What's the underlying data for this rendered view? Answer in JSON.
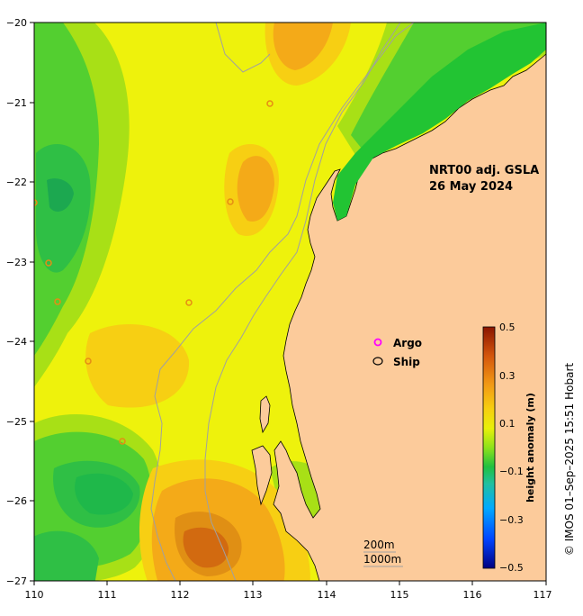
{
  "map": {
    "product_title": "NRT00 adj. GSLA",
    "date": "26 May 2024",
    "credit": "© IMOS 01–Sep–2025 15:51 Hobart",
    "lon_range": [
      110,
      117
    ],
    "lat_range": [
      -27,
      -20
    ],
    "lon_ticks": [
      "110",
      "111",
      "112",
      "113",
      "114",
      "115",
      "116",
      "117"
    ],
    "lat_ticks": [
      "−20",
      "−21",
      "−22",
      "−23",
      "−24",
      "−25",
      "−26",
      "−27"
    ],
    "legend": {
      "argo_label": "Argo",
      "ship_label": "Ship",
      "contour_200": "200m",
      "contour_1000": "1000m"
    },
    "colorbar": {
      "label": "height anomaly (m)",
      "range": [
        -0.5,
        0.5
      ],
      "ticks": [
        "0.5",
        "0.3",
        "0.1",
        "−0.1",
        "−0.3",
        "−0.5"
      ]
    },
    "colors": {
      "land": "#fccb9b",
      "ocean_yellow": "#f2f20a",
      "ocean_orange": "#f5b516",
      "ocean_green": "#3fc73a"
    }
  }
}
